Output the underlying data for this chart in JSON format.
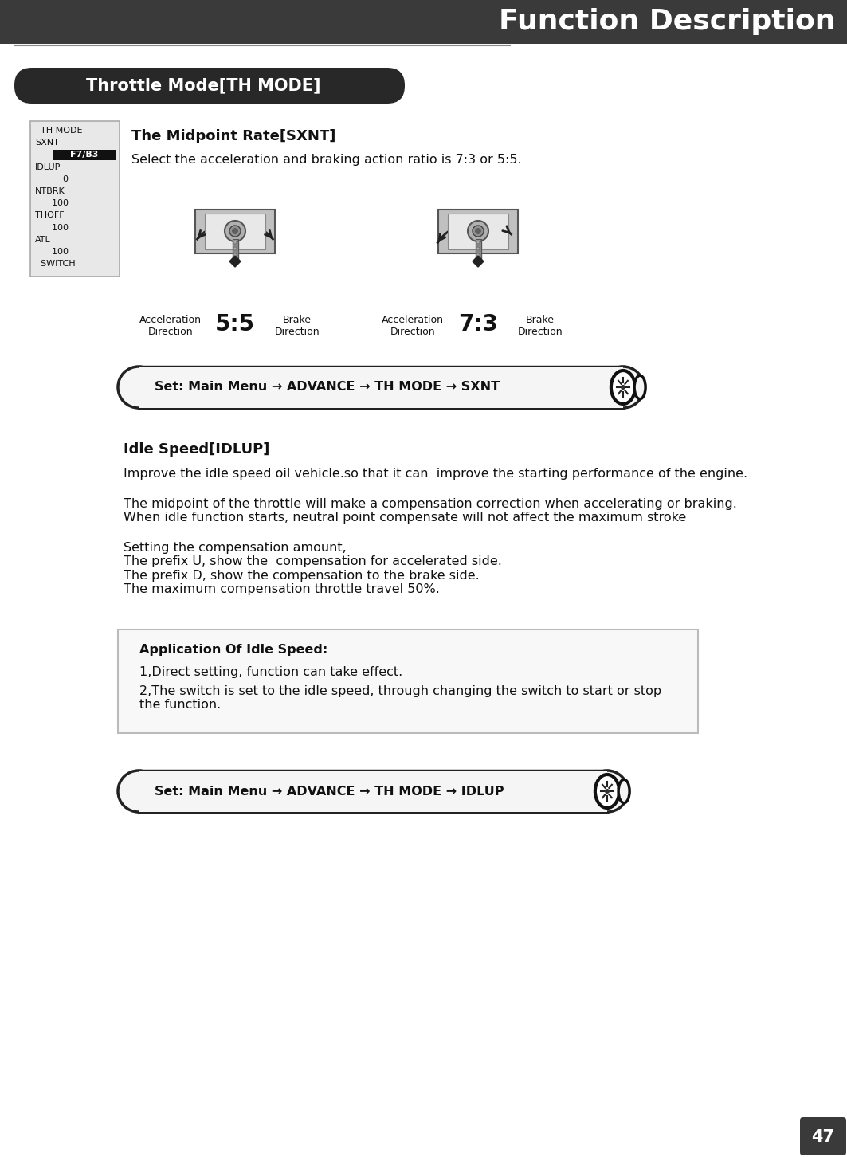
{
  "page_num": "47",
  "header_title": "Function Description",
  "section_title": "Throttle Mode[TH MODE]",
  "subsection1_title": "The Midpoint Rate[SXNT]",
  "subsection1_text": "Select the acceleration and braking action ratio is 7:3 or 5:5.",
  "subsection2_title": "Idle Speed[IDLUP]",
  "subsection2_text1": "Improve the idle speed oil vehicle.so that it can  improve the starting performance of the engine.",
  "subsection2_text2": "The midpoint of the throttle will make a compensation correction when accelerating or braking.\nWhen idle function starts, neutral point compensate will not affect the maximum stroke",
  "subsection2_text3": "Setting the compensation amount,\nThe prefix U, show the  compensation for accelerated side.\nThe prefix D, show the compensation to the brake side.\nThe maximum compensation throttle travel 50%.",
  "app_box_title": "Application Of Idle Speed:",
  "app_box_text1": "1,Direct setting, function can take effect.",
  "app_box_text2": "2,The switch is set to the idle speed, through changing the switch to start or stop\nthe function.",
  "nav1": "Set: Main Menu → ADVANCE → TH MODE → SXNT",
  "nav2": "Set: Main Menu → ADVANCE → TH MODE → IDLUP",
  "ratio_55": "5:5",
  "ratio_73": "7:3",
  "label_accel": "Acceleration\nDirection",
  "label_brake": "Brake\nDirection",
  "bg_color": "#ffffff",
  "header_bg": "#3a3a3a",
  "section_bg": "#282828",
  "header_text_color": "#ffffff",
  "body_text_color": "#111111",
  "menu_bg": "#e5e5e5",
  "page_box_bg": "#3a3a3a"
}
